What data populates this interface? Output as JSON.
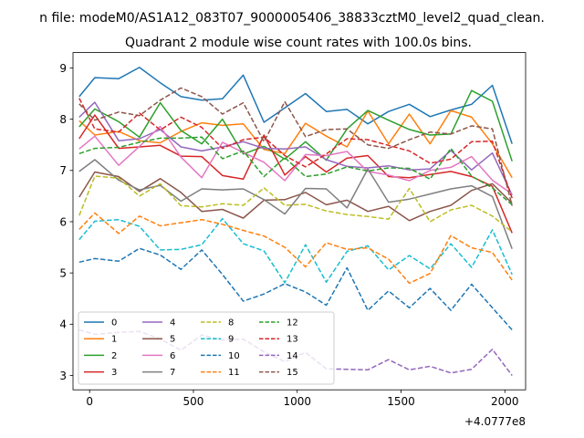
{
  "chart_data": {
    "type": "line",
    "suptitle": "n file: modeM0/AS1A12_083T07_9000005406_38833cztM0_level2_quad_clean.",
    "title": "Quadrant 2 module wise count rates with 100.0s bins.",
    "xlabel": "",
    "ylabel": "",
    "x_offset_label": "+4.0777e8",
    "x_ticks": [
      0,
      500,
      1000,
      1500,
      2000
    ],
    "y_ticks": [
      3,
      4,
      5,
      6,
      7,
      8,
      9
    ],
    "xlim": [
      -80,
      2100
    ],
    "ylim": [
      2.72,
      9.3
    ],
    "grid": false,
    "legend_position": "lower-left",
    "legend_columns": 4,
    "x": [
      -50,
      25,
      140,
      240,
      340,
      440,
      540,
      640,
      740,
      840,
      940,
      1040,
      1140,
      1240,
      1340,
      1440,
      1540,
      1640,
      1740,
      1840,
      1940,
      2035
    ],
    "series": [
      {
        "name": "0",
        "color": "#1f77b4",
        "dash": "solid",
        "values": [
          8.44,
          8.81,
          8.79,
          9.01,
          8.71,
          8.44,
          8.37,
          8.4,
          8.86,
          7.94,
          8.22,
          8.5,
          8.15,
          8.19,
          7.91,
          8.15,
          8.29,
          8.05,
          8.18,
          8.29,
          8.66,
          7.52
        ]
      },
      {
        "name": "1",
        "color": "#ff7f0e",
        "dash": "solid",
        "values": [
          7.97,
          7.69,
          7.76,
          7.58,
          7.54,
          7.76,
          7.93,
          7.88,
          7.91,
          7.41,
          7.33,
          7.92,
          7.67,
          7.46,
          8.16,
          7.52,
          8.1,
          7.52,
          8.17,
          8.04,
          7.52,
          6.86
        ]
      },
      {
        "name": "2",
        "color": "#2ca02c",
        "dash": "solid",
        "values": [
          7.85,
          8.2,
          7.95,
          7.65,
          8.32,
          7.78,
          7.52,
          8.0,
          7.32,
          7.47,
          7.22,
          7.56,
          7.2,
          7.81,
          8.17,
          7.98,
          7.8,
          7.69,
          7.71,
          8.56,
          8.35,
          7.18
        ]
      },
      {
        "name": "3",
        "color": "#d62728",
        "dash": "solid",
        "values": [
          7.62,
          8.08,
          7.43,
          7.46,
          7.49,
          7.28,
          7.27,
          6.9,
          6.83,
          7.69,
          6.91,
          7.27,
          6.97,
          7.24,
          7.29,
          6.88,
          6.86,
          6.92,
          6.98,
          6.88,
          6.69,
          5.78
        ]
      },
      {
        "name": "4",
        "color": "#9467bd",
        "dash": "solid",
        "values": [
          8.04,
          8.33,
          7.58,
          7.62,
          7.8,
          7.46,
          7.38,
          7.46,
          7.56,
          7.43,
          7.42,
          7.46,
          7.21,
          7.08,
          7.05,
          7.09,
          7.01,
          7.03,
          7.39,
          7.01,
          7.34,
          6.52
        ]
      },
      {
        "name": "5",
        "color": "#8c564b",
        "dash": "solid",
        "values": [
          6.48,
          6.97,
          6.88,
          6.59,
          6.84,
          6.57,
          6.2,
          6.24,
          6.07,
          6.42,
          6.43,
          6.57,
          6.33,
          6.42,
          6.2,
          6.3,
          6.02,
          6.2,
          6.32,
          6.61,
          6.74,
          6.36
        ]
      },
      {
        "name": "6",
        "color": "#e377c2",
        "dash": "solid",
        "values": [
          7.42,
          7.67,
          7.1,
          7.47,
          7.86,
          7.26,
          6.86,
          7.55,
          7.35,
          7.16,
          6.8,
          7.31,
          7.29,
          7.37,
          6.98,
          6.91,
          6.8,
          7.0,
          7.06,
          7.27,
          6.81,
          6.54
        ]
      },
      {
        "name": "7",
        "color": "#7f7f7f",
        "dash": "solid",
        "values": [
          6.98,
          7.21,
          6.81,
          6.62,
          6.71,
          6.4,
          6.64,
          6.62,
          6.64,
          6.43,
          6.15,
          6.65,
          6.64,
          6.27,
          7.03,
          6.38,
          6.44,
          6.54,
          6.64,
          6.7,
          6.49,
          5.47
        ]
      },
      {
        "name": "8",
        "color": "#bcbd22",
        "dash": "dashed",
        "values": [
          6.12,
          6.89,
          6.85,
          6.5,
          6.74,
          6.31,
          6.29,
          6.35,
          6.32,
          6.66,
          6.32,
          6.34,
          6.21,
          6.14,
          6.1,
          6.05,
          6.65,
          6.0,
          6.23,
          6.32,
          6.11,
          5.8
        ]
      },
      {
        "name": "9",
        "color": "#17becf",
        "dash": "dashed",
        "values": [
          5.65,
          6.01,
          6.04,
          5.91,
          5.45,
          5.46,
          5.55,
          6.06,
          5.57,
          5.43,
          4.81,
          5.55,
          4.82,
          5.42,
          5.53,
          5.06,
          5.34,
          5.08,
          5.57,
          5.11,
          5.84,
          4.97
        ]
      },
      {
        "name": "10",
        "color": "#1f77b4",
        "dash": "dashed",
        "values": [
          5.21,
          5.28,
          5.23,
          5.48,
          5.35,
          5.07,
          5.45,
          4.97,
          4.45,
          4.59,
          4.79,
          4.63,
          4.37,
          5.1,
          4.27,
          4.65,
          4.32,
          4.7,
          4.27,
          4.78,
          4.32,
          3.89
        ]
      },
      {
        "name": "11",
        "color": "#ff7f0e",
        "dash": "dashed",
        "values": [
          5.85,
          6.17,
          5.77,
          6.11,
          5.92,
          5.98,
          6.04,
          5.95,
          5.83,
          5.72,
          5.5,
          5.12,
          5.59,
          5.46,
          5.49,
          5.27,
          4.8,
          4.99,
          5.73,
          5.49,
          5.4,
          4.86
        ]
      },
      {
        "name": "12",
        "color": "#2ca02c",
        "dash": "dashed",
        "values": [
          7.33,
          7.43,
          7.45,
          7.55,
          7.63,
          7.63,
          7.65,
          7.23,
          7.38,
          6.88,
          7.25,
          6.88,
          6.93,
          7.07,
          6.99,
          7.05,
          7.04,
          6.83,
          7.43,
          6.89,
          6.66,
          6.33
        ]
      },
      {
        "name": "13",
        "color": "#d62728",
        "dash": "dashed",
        "values": [
          8.41,
          7.81,
          7.75,
          8.12,
          7.79,
          8.04,
          7.84,
          7.43,
          7.6,
          7.65,
          7.29,
          7.07,
          7.32,
          7.62,
          7.6,
          7.49,
          7.38,
          7.14,
          7.22,
          7.56,
          7.57,
          6.46
        ]
      },
      {
        "name": "14",
        "color": "#9467bd",
        "dash": "dashed",
        "values": [
          3.89,
          3.8,
          3.84,
          3.86,
          3.71,
          3.49,
          3.79,
          3.69,
          3.71,
          3.46,
          3.27,
          3.45,
          3.13,
          3.12,
          3.11,
          3.31,
          3.11,
          3.18,
          3.05,
          3.12,
          3.51,
          3.0
        ]
      },
      {
        "name": "15",
        "color": "#8c564b",
        "dash": "dashed",
        "values": [
          8.3,
          7.98,
          8.14,
          8.07,
          8.37,
          8.61,
          8.44,
          8.1,
          8.32,
          7.56,
          8.34,
          7.66,
          7.8,
          7.81,
          7.5,
          7.43,
          7.6,
          7.75,
          7.71,
          7.87,
          7.81,
          6.31
        ]
      }
    ]
  }
}
